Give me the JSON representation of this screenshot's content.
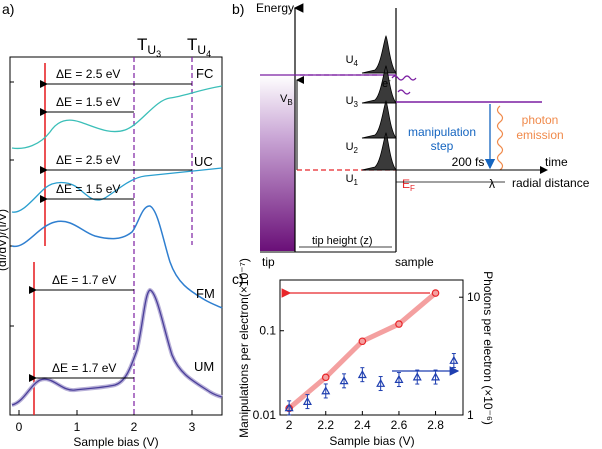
{
  "panel_a": {
    "letter": "a)",
    "ylabel": "(dI/dV)/(I/V)",
    "xlabel": "Sample bias (V)",
    "xticks": [
      "0",
      "1",
      "2",
      "3"
    ],
    "top_labels": {
      "tu3": "T",
      "tu3_sub": "U",
      "tu3_subsub": "3",
      "tu4": "T",
      "tu4_sub": "U",
      "tu4_subsub": "4"
    },
    "curve_labels": [
      "FC",
      "UC",
      "FM",
      "UM"
    ],
    "gap_labels": [
      "ΔE = 2.5 eV",
      "ΔE = 1.5 eV",
      "ΔE = 2.5 eV",
      "ΔE = 1.5 eV",
      "ΔE = 1.7 eV",
      "ΔE = 1.7 eV"
    ],
    "colors": {
      "fc": "#3bbfb8",
      "uc": "#2a9fcf",
      "fm": "#2f7fd0",
      "um": "#4a3f9a",
      "red": "#e8262a",
      "purple": "#7b1fa2"
    }
  },
  "panel_b": {
    "letter": "b)",
    "energy": "Energy",
    "vb": "V",
    "vb_sub": "B",
    "levels": [
      {
        "main": "U",
        "sub": "4"
      },
      {
        "main": "U",
        "sub": "3"
      },
      {
        "main": "U",
        "sub": "2"
      },
      {
        "main": "U",
        "sub": "1"
      }
    ],
    "electron": "e",
    "electron_sup": "-",
    "ef": "E",
    "ef_sub": "F",
    "manip_line1": "manipulation",
    "manip_line2": "step",
    "photon_line1": "photon",
    "photon_line2": "emission",
    "time_fs": "200 fs",
    "lambda": "λ",
    "time": "time",
    "radial": "radial distance",
    "tip_height": "tip height (z)",
    "tip": "tip",
    "sample": "sample",
    "colors": {
      "purple": "#7b1fa2",
      "blue": "#1565c0",
      "orange": "#f08a4b",
      "red": "#e8262a"
    }
  },
  "panel_c": {
    "letter": "c)",
    "chart_data": {
      "type": "scatter",
      "xlabel": "Sample bias (V)",
      "ylabel_left": "Manipulations per electron(×10⁻⁷)",
      "ylabel_right": "Photons per electron (×10⁻⁶)",
      "xlim": [
        1.95,
        2.95
      ],
      "ylim_left_log": [
        0.01,
        0.4
      ],
      "ylim_right_log": [
        1,
        14
      ],
      "xticks": [
        "2",
        "2.2",
        "2.4",
        "2.6",
        "2.8"
      ],
      "yticks_left": [
        "0.01",
        "0.1"
      ],
      "yticks_right": [
        "1",
        "10"
      ],
      "series": [
        {
          "name": "manipulations",
          "marker": "circle",
          "color": "#e8262a",
          "x": [
            2.0,
            2.2,
            2.4,
            2.6,
            2.8
          ],
          "y": [
            0.012,
            0.028,
            0.075,
            0.12,
            0.28
          ]
        },
        {
          "name": "photons",
          "marker": "triangle",
          "color": "#1f3fb0",
          "x": [
            2.0,
            2.1,
            2.2,
            2.3,
            2.4,
            2.5,
            2.6,
            2.7,
            2.8,
            2.9
          ],
          "y": [
            1.15,
            1.3,
            1.6,
            1.95,
            2.2,
            1.85,
            2.0,
            2.1,
            2.1,
            2.9
          ]
        }
      ]
    }
  }
}
